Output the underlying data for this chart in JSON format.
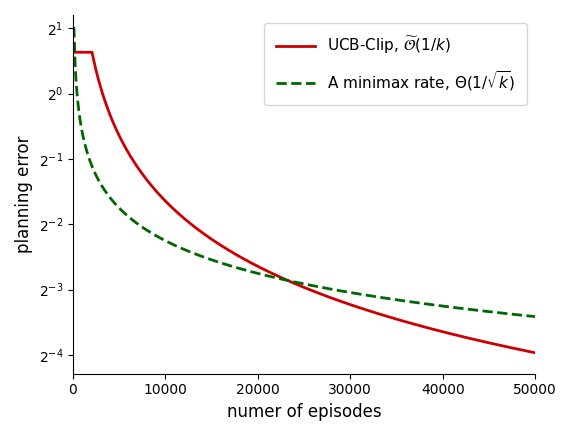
{
  "title": "",
  "xlabel": "numer of episodes",
  "ylabel": "planning error",
  "xmin": 0,
  "xmax": 50000,
  "ymin_exp": -4,
  "ymax_exp": 1,
  "red_label": "UCB-Clip, $\\widetilde{\\mathcal{O}}(1/k)$",
  "green_label": "A minimax rate, $\\Theta(1/\\sqrt{k})$",
  "red_color": "#cc0000",
  "green_color": "#006600",
  "red_C": 3200.0,
  "red_flat_k": 500,
  "red_flat_val": 1.55,
  "green_C": 21.0,
  "xticks": [
    0,
    10000,
    20000,
    30000,
    40000,
    50000
  ],
  "ytick_exps": [
    -4,
    -3,
    -2,
    -1,
    0,
    1
  ],
  "legend_loc": "upper right",
  "figwidth": 5.72,
  "figheight": 4.36,
  "dpi": 100
}
